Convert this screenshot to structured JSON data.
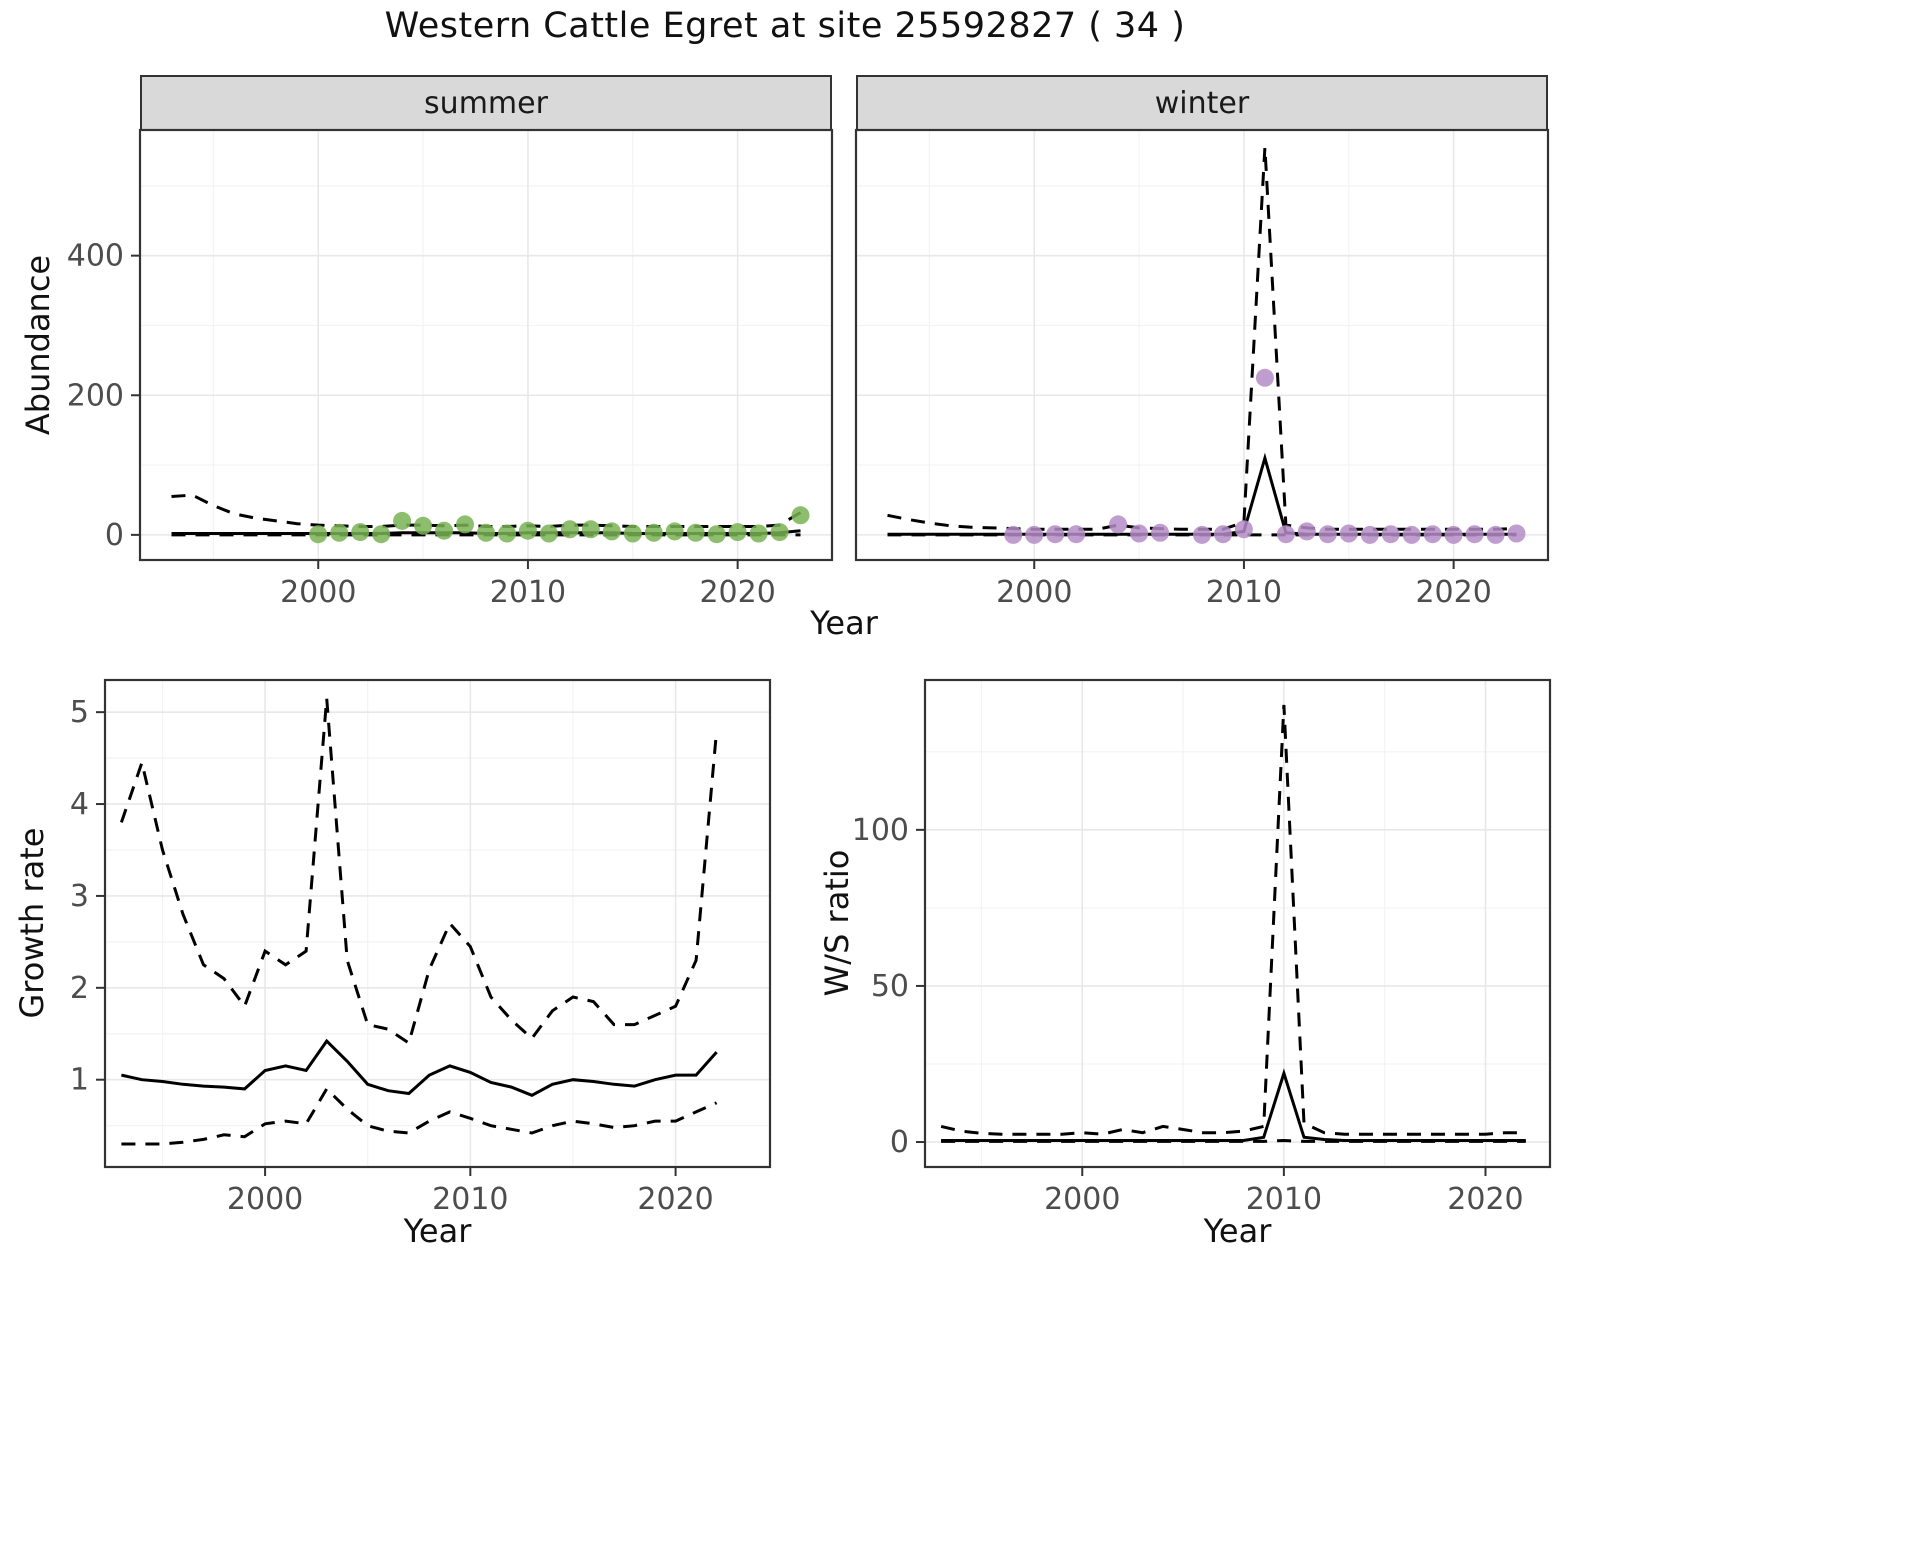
{
  "title": "Western Cattle Egret at site 25592827 ( 34 )",
  "colors": {
    "summer_point": "#79B354",
    "winter_point": "#B48CC5",
    "line": "#000000",
    "strip_bg": "#D9D9D9",
    "grid_major": "#E8E8E8",
    "grid_minor": "#F3F3F3",
    "panel_border": "#333333",
    "axis_text": "#4D4D4D",
    "background": "#FFFFFF"
  },
  "chart_data": [
    {
      "id": "abundance_summer",
      "type": "line",
      "facet": "summer",
      "title": "",
      "xlabel": "Year",
      "ylabel": "Abundance",
      "xlim": [
        1991.5,
        2024.5
      ],
      "ylim": [
        -36,
        580
      ],
      "xticks": [
        2000,
        2010,
        2020
      ],
      "yticks": [
        0,
        200,
        400
      ],
      "xticks_minor": [
        1995,
        2005,
        2015
      ],
      "yticks_minor": [
        100,
        300,
        500
      ],
      "grid": true,
      "legend": "none",
      "series": [
        {
          "name": "upper_ci",
          "style": "dashed",
          "x": [
            1993,
            1994,
            1995,
            1996,
            1997,
            1998,
            1999,
            2000,
            2001,
            2002,
            2003,
            2004,
            2005,
            2006,
            2007,
            2008,
            2009,
            2010,
            2011,
            2012,
            2013,
            2014,
            2015,
            2016,
            2017,
            2018,
            2019,
            2020,
            2021,
            2022,
            2023
          ],
          "y": [
            55,
            57,
            42,
            30,
            24,
            20,
            16,
            14,
            13,
            12,
            12,
            14,
            14,
            13,
            14,
            12,
            12,
            13,
            12,
            14,
            14,
            13,
            12,
            12,
            12,
            12,
            12,
            12,
            12,
            14,
            32
          ]
        },
        {
          "name": "median",
          "style": "solid",
          "x": [
            1993,
            1994,
            1995,
            1996,
            1997,
            1998,
            1999,
            2000,
            2001,
            2002,
            2003,
            2004,
            2005,
            2006,
            2007,
            2008,
            2009,
            2010,
            2011,
            2012,
            2013,
            2014,
            2015,
            2016,
            2017,
            2018,
            2019,
            2020,
            2021,
            2022,
            2023
          ],
          "y": [
            2,
            2,
            2,
            2,
            2,
            2,
            2,
            2,
            2,
            2,
            2,
            3,
            3,
            3,
            3,
            2,
            2,
            3,
            3,
            3,
            3,
            3,
            2,
            2,
            2,
            2,
            2,
            2,
            2,
            3,
            6
          ]
        },
        {
          "name": "lower_ci",
          "style": "dashed",
          "x": [
            1993,
            1994,
            1995,
            1996,
            1997,
            1998,
            1999,
            2000,
            2001,
            2002,
            2003,
            2004,
            2005,
            2006,
            2007,
            2008,
            2009,
            2010,
            2011,
            2012,
            2013,
            2014,
            2015,
            2016,
            2017,
            2018,
            2019,
            2020,
            2021,
            2022,
            2023
          ],
          "y": [
            0,
            0,
            0,
            0,
            0,
            0,
            0,
            0,
            0,
            0,
            0,
            0,
            0,
            0,
            0,
            0,
            0,
            0,
            0,
            0,
            0,
            0,
            0,
            0,
            0,
            0,
            0,
            0,
            0,
            0,
            0
          ]
        },
        {
          "name": "observed_counts",
          "style": "points",
          "color": "#79B354",
          "x": [
            2000,
            2001,
            2002,
            2003,
            2004,
            2005,
            2006,
            2007,
            2008,
            2009,
            2010,
            2011,
            2012,
            2013,
            2014,
            2015,
            2016,
            2017,
            2018,
            2019,
            2020,
            2021,
            2022,
            2023
          ],
          "y": [
            1,
            3,
            4,
            1,
            20,
            13,
            6,
            15,
            3,
            2,
            6,
            2,
            8,
            8,
            5,
            2,
            3,
            5,
            3,
            1,
            4,
            2,
            4,
            28
          ]
        }
      ]
    },
    {
      "id": "abundance_winter",
      "type": "line",
      "facet": "winter",
      "title": "",
      "xlabel": "Year",
      "ylabel": "Abundance",
      "xlim": [
        1991.5,
        2024.5
      ],
      "ylim": [
        -36,
        580
      ],
      "xticks": [
        2000,
        2010,
        2020
      ],
      "yticks": [
        0,
        200,
        400
      ],
      "xticks_minor": [
        1995,
        2005,
        2015
      ],
      "yticks_minor": [
        100,
        300,
        500
      ],
      "grid": true,
      "legend": "none",
      "series": [
        {
          "name": "upper_ci",
          "style": "dashed",
          "x": [
            1993,
            1994,
            1995,
            1996,
            1997,
            1998,
            1999,
            2000,
            2001,
            2002,
            2003,
            2004,
            2005,
            2006,
            2007,
            2008,
            2009,
            2010,
            2011,
            2012,
            2013,
            2014,
            2015,
            2016,
            2017,
            2018,
            2019,
            2020,
            2021,
            2022,
            2023
          ],
          "y": [
            28,
            22,
            17,
            13,
            11,
            10,
            9,
            8,
            8,
            8,
            8,
            14,
            10,
            9,
            8,
            8,
            8,
            18,
            555,
            14,
            10,
            8,
            8,
            8,
            8,
            8,
            8,
            8,
            8,
            8,
            9
          ]
        },
        {
          "name": "median",
          "style": "solid",
          "x": [
            1993,
            1994,
            1995,
            1996,
            1997,
            1998,
            1999,
            2000,
            2001,
            2002,
            2003,
            2004,
            2005,
            2006,
            2007,
            2008,
            2009,
            2010,
            2011,
            2012,
            2013,
            2014,
            2015,
            2016,
            2017,
            2018,
            2019,
            2020,
            2021,
            2022,
            2023
          ],
          "y": [
            1,
            1,
            1,
            1,
            1,
            1,
            1,
            1,
            1,
            1,
            1,
            1,
            1,
            1,
            1,
            1,
            1,
            5,
            110,
            3,
            1,
            1,
            1,
            1,
            1,
            1,
            1,
            1,
            1,
            1,
            1
          ]
        },
        {
          "name": "lower_ci",
          "style": "dashed",
          "x": [
            1993,
            1994,
            1995,
            1996,
            1997,
            1998,
            1999,
            2000,
            2001,
            2002,
            2003,
            2004,
            2005,
            2006,
            2007,
            2008,
            2009,
            2010,
            2011,
            2012,
            2013,
            2014,
            2015,
            2016,
            2017,
            2018,
            2019,
            2020,
            2021,
            2022,
            2023
          ],
          "y": [
            0,
            0,
            0,
            0,
            0,
            0,
            0,
            0,
            0,
            0,
            0,
            0,
            0,
            0,
            0,
            0,
            0,
            0,
            0,
            0,
            0,
            0,
            0,
            0,
            0,
            0,
            0,
            0,
            0,
            0,
            0
          ]
        },
        {
          "name": "observed_counts",
          "style": "points",
          "color": "#B48CC5",
          "x": [
            1999,
            2000,
            2001,
            2002,
            2004,
            2005,
            2006,
            2008,
            2009,
            2010,
            2011,
            2012,
            2013,
            2014,
            2015,
            2016,
            2017,
            2018,
            2019,
            2020,
            2021,
            2022,
            2023
          ],
          "y": [
            0,
            0,
            1,
            1,
            15,
            2,
            3,
            0,
            1,
            8,
            225,
            1,
            5,
            1,
            2,
            0,
            1,
            0,
            1,
            0,
            1,
            0,
            2
          ]
        }
      ]
    },
    {
      "id": "growth",
      "type": "line",
      "facet": "",
      "title": "",
      "xlabel": "Year",
      "ylabel": "Growth rate",
      "xlim": [
        1992.2,
        2024.6
      ],
      "ylim": [
        0.05,
        5.35
      ],
      "xticks": [
        2000,
        2010,
        2020
      ],
      "yticks": [
        1,
        2,
        3,
        4,
        5
      ],
      "xticks_minor": [
        1995,
        2005,
        2015
      ],
      "yticks_minor": [
        0.5,
        1.5,
        2.5,
        3.5,
        4.5
      ],
      "grid": true,
      "legend": "none",
      "series": [
        {
          "name": "upper_ci",
          "style": "dashed",
          "x": [
            1993,
            1994,
            1995,
            1996,
            1997,
            1998,
            1999,
            2000,
            2001,
            2002,
            2003,
            2004,
            2005,
            2006,
            2007,
            2008,
            2009,
            2010,
            2011,
            2012,
            2013,
            2014,
            2015,
            2016,
            2017,
            2018,
            2019,
            2020,
            2021,
            2022
          ],
          "y": [
            3.8,
            4.45,
            3.5,
            2.8,
            2.25,
            2.1,
            1.8,
            2.4,
            2.25,
            2.4,
            5.15,
            2.3,
            1.6,
            1.55,
            1.4,
            2.2,
            2.7,
            2.45,
            1.9,
            1.65,
            1.45,
            1.75,
            1.9,
            1.85,
            1.6,
            1.6,
            1.7,
            1.8,
            2.3,
            4.8
          ]
        },
        {
          "name": "median",
          "style": "solid",
          "x": [
            1993,
            1994,
            1995,
            1996,
            1997,
            1998,
            1999,
            2000,
            2001,
            2002,
            2003,
            2004,
            2005,
            2006,
            2007,
            2008,
            2009,
            2010,
            2011,
            2012,
            2013,
            2014,
            2015,
            2016,
            2017,
            2018,
            2019,
            2020,
            2021,
            2022
          ],
          "y": [
            1.05,
            1.0,
            0.98,
            0.95,
            0.93,
            0.92,
            0.9,
            1.1,
            1.15,
            1.1,
            1.42,
            1.2,
            0.95,
            0.88,
            0.85,
            1.05,
            1.15,
            1.08,
            0.97,
            0.92,
            0.83,
            0.95,
            1.0,
            0.98,
            0.95,
            0.93,
            1.0,
            1.05,
            1.05,
            1.3
          ]
        },
        {
          "name": "lower_ci",
          "style": "dashed",
          "x": [
            1993,
            1994,
            1995,
            1996,
            1997,
            1998,
            1999,
            2000,
            2001,
            2002,
            2003,
            2004,
            2005,
            2006,
            2007,
            2008,
            2009,
            2010,
            2011,
            2012,
            2013,
            2014,
            2015,
            2016,
            2017,
            2018,
            2019,
            2020,
            2021,
            2022
          ],
          "y": [
            0.3,
            0.3,
            0.3,
            0.32,
            0.35,
            0.4,
            0.38,
            0.52,
            0.55,
            0.52,
            0.9,
            0.68,
            0.5,
            0.44,
            0.42,
            0.55,
            0.65,
            0.58,
            0.5,
            0.46,
            0.42,
            0.5,
            0.55,
            0.52,
            0.48,
            0.5,
            0.55,
            0.55,
            0.65,
            0.75
          ]
        }
      ]
    },
    {
      "id": "ratio",
      "type": "line",
      "facet": "",
      "title": "",
      "xlabel": "Year",
      "ylabel": "W/S ratio",
      "xlim": [
        1992.2,
        2023.2
      ],
      "ylim": [
        -8,
        148
      ],
      "xticks": [
        2000,
        2010,
        2020
      ],
      "yticks": [
        0,
        50,
        100
      ],
      "xticks_minor": [
        1995,
        2005,
        2015
      ],
      "yticks_minor": [
        25,
        75,
        125
      ],
      "grid": true,
      "legend": "none",
      "series": [
        {
          "name": "upper_ci",
          "style": "dashed",
          "x": [
            1993,
            1994,
            1995,
            1996,
            1997,
            1998,
            1999,
            2000,
            2001,
            2002,
            2003,
            2004,
            2005,
            2006,
            2007,
            2008,
            2009,
            2010,
            2011,
            2012,
            2013,
            2014,
            2015,
            2016,
            2017,
            2018,
            2019,
            2020,
            2021,
            2022
          ],
          "y": [
            5,
            3.5,
            2.8,
            2.5,
            2.5,
            2.5,
            2.5,
            3,
            2.5,
            4,
            3,
            5,
            4,
            3,
            3,
            3.5,
            5,
            140,
            6,
            3,
            2.5,
            2.5,
            2.5,
            2.5,
            2.5,
            2.5,
            2.5,
            2.5,
            3,
            3
          ]
        },
        {
          "name": "median",
          "style": "solid",
          "x": [
            1993,
            1994,
            1995,
            1996,
            1997,
            1998,
            1999,
            2000,
            2001,
            2002,
            2003,
            2004,
            2005,
            2006,
            2007,
            2008,
            2009,
            2010,
            2011,
            2012,
            2013,
            2014,
            2015,
            2016,
            2017,
            2018,
            2019,
            2020,
            2021,
            2022
          ],
          "y": [
            0.5,
            0.5,
            0.5,
            0.5,
            0.5,
            0.5,
            0.5,
            0.5,
            0.5,
            0.5,
            0.5,
            0.5,
            0.5,
            0.5,
            0.5,
            0.5,
            1.5,
            22,
            1.5,
            0.8,
            0.5,
            0.5,
            0.5,
            0.5,
            0.5,
            0.5,
            0.5,
            0.5,
            0.5,
            0.5
          ]
        },
        {
          "name": "lower_ci",
          "style": "dashed",
          "x": [
            1993,
            1994,
            1995,
            1996,
            1997,
            1998,
            1999,
            2000,
            2001,
            2002,
            2003,
            2004,
            2005,
            2006,
            2007,
            2008,
            2009,
            2010,
            2011,
            2012,
            2013,
            2014,
            2015,
            2016,
            2017,
            2018,
            2019,
            2020,
            2021,
            2022
          ],
          "y": [
            0.2,
            0.2,
            0.2,
            0.2,
            0.2,
            0.2,
            0.2,
            0.2,
            0.2,
            0.2,
            0.2,
            0.2,
            0.2,
            0.2,
            0.2,
            0.2,
            0.2,
            0.5,
            0.2,
            0.2,
            0.2,
            0.2,
            0.2,
            0.2,
            0.2,
            0.2,
            0.2,
            0.2,
            0.2,
            0.2
          ]
        }
      ]
    }
  ]
}
